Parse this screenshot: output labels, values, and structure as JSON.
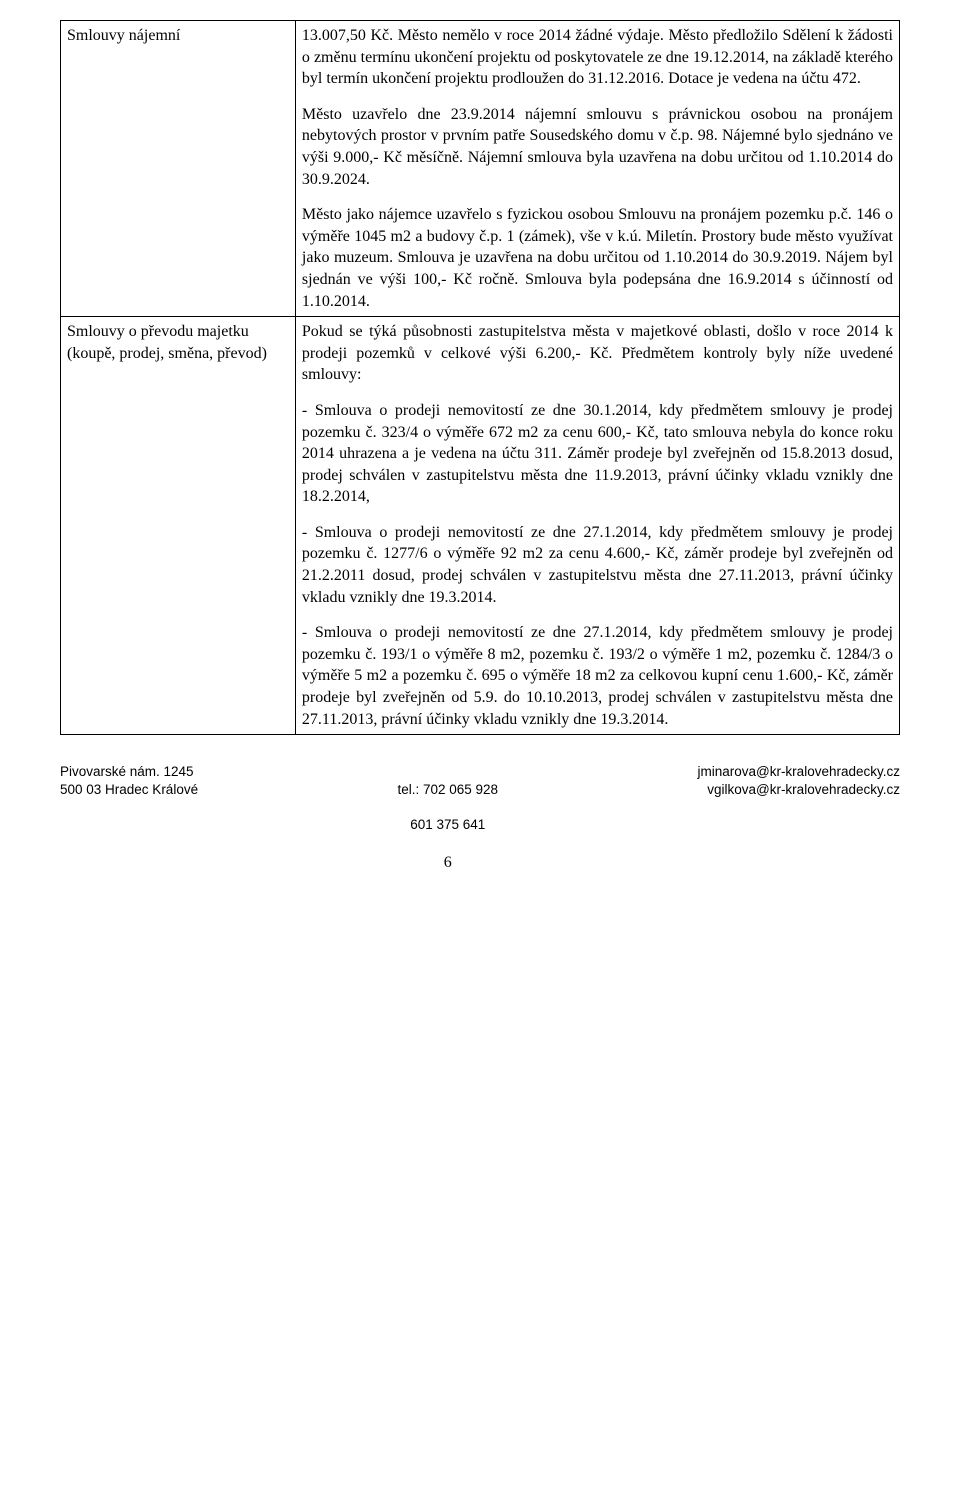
{
  "rows": [
    {
      "left": "Smlouvy nájemní",
      "paras": [
        "13.007,50 Kč. Město nemělo v roce 2014 žádné výdaje. Město předložilo Sdělení k žádosti o změnu termínu ukončení projektu od poskytovatele ze dne 19.12.2014, na základě kterého byl termín ukončení projektu prodloužen do 31.12.2016. Dotace je vedena na účtu 472.",
        "Město uzavřelo dne 23.9.2014 nájemní smlouvu s právnickou osobou na pronájem nebytových prostor v prvním patře Sousedského domu v č.p. 98. Nájemné bylo sjednáno ve výši 9.000,- Kč měsíčně. Nájemní smlouva byla uzavřena na dobu určitou od 1.10.2014 do 30.9.2024.",
        "Město jako nájemce uzavřelo s fyzickou osobou Smlouvu na pronájem pozemku p.č. 146 o výměře 1045 m2 a budovy č.p. 1 (zámek), vše v k.ú. Miletín. Prostory bude město využívat jako muzeum. Smlouva je uzavřena na dobu určitou od 1.10.2014 do 30.9.2019. Nájem byl sjednán ve výši 100,- Kč ročně. Smlouva byla podepsána dne 16.9.2014 s účinností od 1.10.2014."
      ]
    },
    {
      "left": "Smlouvy o převodu majetku (koupě, prodej, směna, převod)",
      "paras": [
        "Pokud se týká působnosti zastupitelstva města v majetkové oblasti, došlo v roce 2014 k prodeji pozemků v celkové výši 6.200,- Kč. Předmětem kontroly byly níže uvedené smlouvy:",
        "- Smlouva o prodeji nemovitostí ze dne 30.1.2014, kdy předmětem smlouvy je prodej pozemku č. 323/4 o výměře 672 m2 za cenu 600,- Kč, tato smlouva nebyla do konce roku 2014 uhrazena a je vedena na účtu 311. Záměr prodeje byl zveřejněn od 15.8.2013 dosud, prodej schválen v zastupitelstvu města dne 11.9.2013, právní účinky vkladu vznikly dne 18.2.2014,",
        "- Smlouva o prodeji nemovitostí ze dne 27.1.2014, kdy předmětem smlouvy je prodej pozemku č. 1277/6 o výměře 92 m2 za cenu 4.600,- Kč, záměr prodeje byl zveřejněn od 21.2.2011 dosud, prodej schválen v zastupitelstvu města dne 27.11.2013, právní účinky vkladu vznikly dne 19.3.2014.",
        "- Smlouva o prodeji nemovitostí ze dne 27.1.2014, kdy předmětem smlouvy je prodej pozemku č. 193/1 o výměře 8 m2, pozemku č. 193/2 o výměře 1 m2, pozemku č. 1284/3 o výměře 5 m2 a pozemku č. 695 o výměře 18 m2 za celkovou kupní cenu 1.600,- Kč, záměr prodeje byl zveřejněn od 5.9. do 10.10.2013, prodej schválen v zastupitelstvu města dne 27.11.2013, právní účinky vkladu vznikly dne 19.3.2014."
      ]
    }
  ],
  "footer": {
    "left": "Pivovarské nám. 1245\n500 03 Hradec Králové",
    "center_top": "tel.: 702 065 928",
    "center_bottom": "601 375 641",
    "right": "jminarova@kr-kralovehradecky.cz\nvgilkova@kr-kralovehradecky.cz",
    "page": "6"
  }
}
